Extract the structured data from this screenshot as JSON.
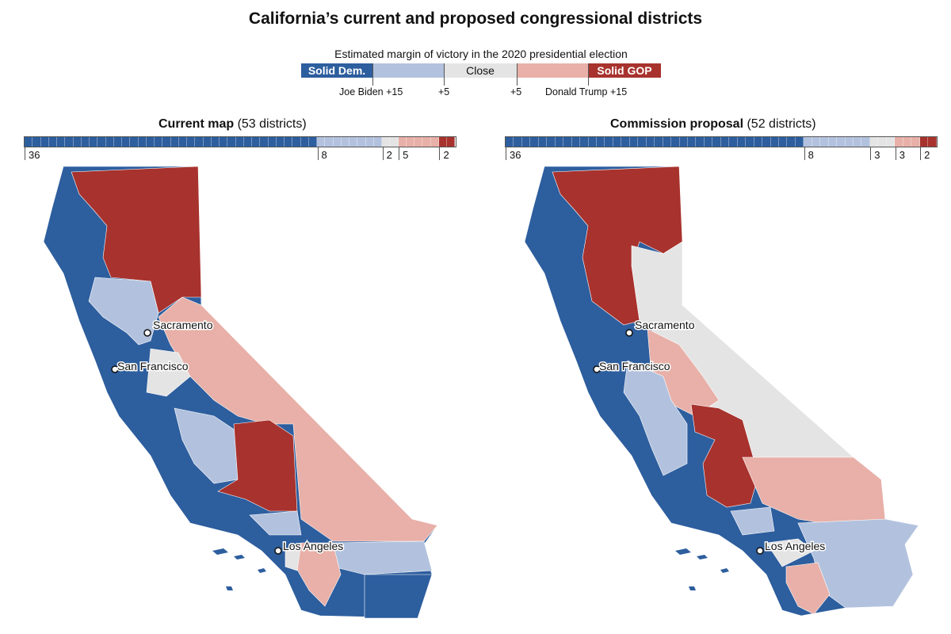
{
  "title": "California’s current and proposed congressional districts",
  "legend": {
    "caption": "Estimated margin of victory in the 2020 presidential election",
    "segments": [
      {
        "label": "Solid Dem.",
        "color": "#2d5e9e"
      },
      {
        "label": "",
        "color": "#b2c2de"
      },
      {
        "label": "Close",
        "color": "#e4e4e4"
      },
      {
        "label": "",
        "color": "#e8b0a8"
      },
      {
        "label": "Solid GOP",
        "color": "#a8322d"
      }
    ],
    "ticks": [
      "Joe Biden +15",
      "+5",
      "+5",
      "Donald Trump +15"
    ]
  },
  "colors": {
    "solid_dem": "#2d5e9e",
    "lean_dem": "#b2c2de",
    "close": "#e4e4e4",
    "lean_gop": "#e8b0a8",
    "solid_gop": "#a8322d"
  },
  "panels": [
    {
      "title_bold": "Current map",
      "title_rest": " (53 districts)",
      "counts": {
        "solid_dem": 36,
        "lean_dem": 8,
        "close": 2,
        "lean_gop": 5,
        "solid_gop": 2
      },
      "count_labels": [
        "36",
        "8",
        "2",
        "5",
        "2"
      ]
    },
    {
      "title_bold": "Commission proposal",
      "title_rest": " (52 districts)",
      "counts": {
        "solid_dem": 36,
        "lean_dem": 8,
        "close": 3,
        "lean_gop": 3,
        "solid_gop": 2
      },
      "count_labels": [
        "36",
        "8",
        "3",
        "3",
        "2"
      ]
    }
  ],
  "cities": [
    "Sacramento",
    "San Francisco",
    "Los Angeles"
  ]
}
